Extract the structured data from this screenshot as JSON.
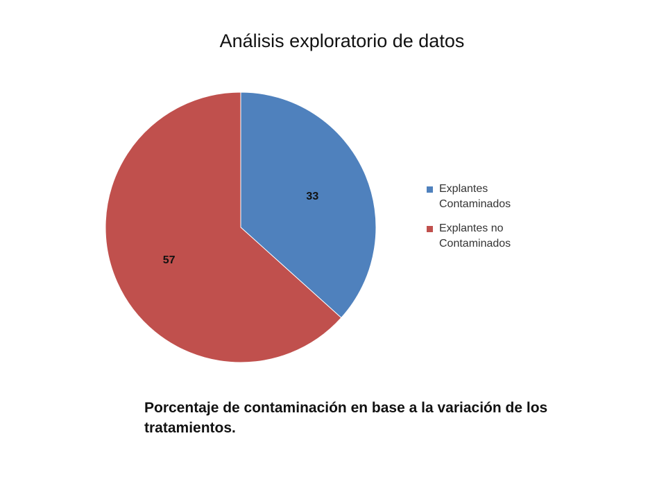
{
  "slide": {
    "title": "Análisis exploratorio de datos",
    "caption": "Porcentaje de contaminación en base a la variación de los tratamientos."
  },
  "chart_data": {
    "type": "pie",
    "title": "",
    "legend_position": "right",
    "slices": [
      {
        "label": "Explantes Contaminados",
        "value": 33,
        "color": "#4F81BD"
      },
      {
        "label": "Explantes no Contaminados",
        "value": 57,
        "color": "#C0504D"
      }
    ]
  }
}
